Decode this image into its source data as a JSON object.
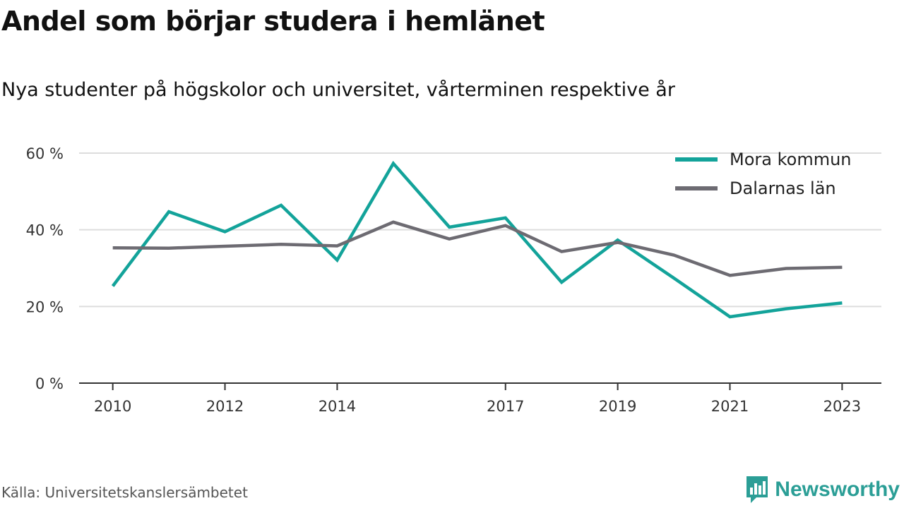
{
  "header": {
    "title": "Andel som börjar studera i hemlänet",
    "subtitle": "Nya studenter på högskolor och universitet, vårterminen respektive år"
  },
  "footer": {
    "source": "Källa: Universitetskanslersämbetet",
    "brand": "Newsworthy",
    "brand_icon": "newsworthy-logo-icon",
    "brand_color": "#2b9e96"
  },
  "chart_data": {
    "type": "line",
    "title": "Andel som börjar studera i hemlänet",
    "subtitle": "Nya studenter på högskolor och universitet, vårterminen respektive år",
    "xlabel": "",
    "ylabel": "",
    "x": [
      2010,
      2011,
      2012,
      2013,
      2014,
      2015,
      2016,
      2017,
      2018,
      2019,
      2020,
      2021,
      2022,
      2023
    ],
    "x_ticks": [
      "2010",
      "2012",
      "2014",
      "2017",
      "2019",
      "2021",
      "2023"
    ],
    "y_ticks": [
      "0 %",
      "20 %",
      "40 %",
      "60 %"
    ],
    "xlim": [
      2009.4,
      2023.7
    ],
    "ylim": [
      0,
      60
    ],
    "grid": "horizontal",
    "legend_position": "top-right",
    "series": [
      {
        "name": "Mora kommun",
        "color": "#13a39a",
        "values": [
          25.3,
          44.7,
          39.5,
          46.4,
          32.1,
          57.3,
          40.7,
          43.1,
          26.3,
          37.3,
          27.4,
          17.3,
          19.4,
          20.9
        ]
      },
      {
        "name": "Dalarnas län",
        "color": "#6d6b72",
        "values": [
          35.3,
          35.2,
          35.7,
          36.2,
          35.8,
          42.0,
          37.6,
          41.1,
          34.3,
          36.7,
          33.4,
          28.1,
          29.9,
          30.2
        ]
      }
    ]
  }
}
